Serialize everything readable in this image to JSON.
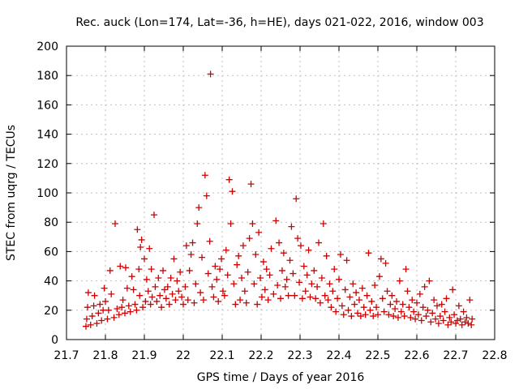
{
  "chart_data": {
    "type": "scatter",
    "title": "Rec. auck (Lon=174, Lat=-36, h=HE), days 021-022, 2016, window 003",
    "xlabel": "GPS time / Days of year 2016",
    "ylabel": "STEC from uqrg / TECUs",
    "xlim": [
      21.7,
      22.8
    ],
    "ylim": [
      0,
      200
    ],
    "xticks": [
      "21.7",
      "21.8",
      "21.9",
      "22",
      "22.1",
      "22.2",
      "22.3",
      "22.4",
      "22.5",
      "22.6",
      "22.7",
      "22.8"
    ],
    "yticks": [
      "0",
      "20",
      "40",
      "60",
      "80",
      "100",
      "120",
      "140",
      "160",
      "180",
      "200"
    ],
    "grid": true,
    "marker": "+",
    "series_color": "#d00000",
    "series": [
      {
        "name": "STEC",
        "points": [
          [
            21.75,
            9
          ],
          [
            21.752,
            14
          ],
          [
            21.754,
            22
          ],
          [
            21.756,
            32
          ],
          [
            21.762,
            10
          ],
          [
            21.766,
            16
          ],
          [
            21.77,
            23
          ],
          [
            21.772,
            30
          ],
          [
            21.778,
            11
          ],
          [
            21.782,
            18
          ],
          [
            21.786,
            24
          ],
          [
            21.79,
            13
          ],
          [
            21.794,
            20
          ],
          [
            21.797,
            35
          ],
          [
            21.8,
            26
          ],
          [
            21.805,
            14
          ],
          [
            21.808,
            20
          ],
          [
            21.812,
            47
          ],
          [
            21.815,
            31
          ],
          [
            21.822,
            15
          ],
          [
            21.825,
            79
          ],
          [
            21.83,
            21
          ],
          [
            21.835,
            17
          ],
          [
            21.838,
            50
          ],
          [
            21.842,
            22
          ],
          [
            21.845,
            27
          ],
          [
            21.85,
            18
          ],
          [
            21.852,
            49
          ],
          [
            21.856,
            35
          ],
          [
            21.86,
            23
          ],
          [
            21.864,
            19
          ],
          [
            21.868,
            43
          ],
          [
            21.872,
            34
          ],
          [
            21.876,
            24
          ],
          [
            21.88,
            20
          ],
          [
            21.882,
            75
          ],
          [
            21.886,
            48
          ],
          [
            21.888,
            30
          ],
          [
            21.89,
            63
          ],
          [
            21.893,
            68
          ],
          [
            21.896,
            22
          ],
          [
            21.9,
            55
          ],
          [
            21.903,
            26
          ],
          [
            21.906,
            41
          ],
          [
            21.91,
            33
          ],
          [
            21.913,
            62
          ],
          [
            21.916,
            24
          ],
          [
            21.918,
            48
          ],
          [
            21.92,
            29
          ],
          [
            21.925,
            85
          ],
          [
            21.928,
            36
          ],
          [
            21.932,
            26
          ],
          [
            21.936,
            42
          ],
          [
            21.94,
            30
          ],
          [
            21.944,
            22
          ],
          [
            21.948,
            47
          ],
          [
            21.952,
            34
          ],
          [
            21.956,
            28
          ],
          [
            21.96,
            36
          ],
          [
            21.964,
            24
          ],
          [
            21.968,
            42
          ],
          [
            21.972,
            31
          ],
          [
            21.976,
            55
          ],
          [
            21.98,
            27
          ],
          [
            21.984,
            40
          ],
          [
            21.988,
            33
          ],
          [
            21.992,
            46
          ],
          [
            21.996,
            29
          ],
          [
            22.0,
            24
          ],
          [
            22.005,
            36
          ],
          [
            22.008,
            64
          ],
          [
            22.012,
            27
          ],
          [
            22.016,
            47
          ],
          [
            22.02,
            58
          ],
          [
            22.024,
            66
          ],
          [
            22.028,
            25
          ],
          [
            22.032,
            38
          ],
          [
            22.036,
            79
          ],
          [
            22.04,
            90
          ],
          [
            22.044,
            32
          ],
          [
            22.048,
            56
          ],
          [
            22.052,
            27
          ],
          [
            22.056,
            112
          ],
          [
            22.06,
            98
          ],
          [
            22.064,
            45
          ],
          [
            22.068,
            67
          ],
          [
            22.07,
            181
          ],
          [
            22.074,
            36
          ],
          [
            22.078,
            29
          ],
          [
            22.082,
            50
          ],
          [
            22.086,
            41
          ],
          [
            22.09,
            26
          ],
          [
            22.094,
            48
          ],
          [
            22.098,
            55
          ],
          [
            22.102,
            33
          ],
          [
            22.106,
            30
          ],
          [
            22.11,
            61
          ],
          [
            22.114,
            44
          ],
          [
            22.118,
            109
          ],
          [
            22.122,
            79
          ],
          [
            22.126,
            101
          ],
          [
            22.13,
            38
          ],
          [
            22.134,
            24
          ],
          [
            22.138,
            51
          ],
          [
            22.142,
            57
          ],
          [
            22.146,
            27
          ],
          [
            22.15,
            42
          ],
          [
            22.154,
            64
          ],
          [
            22.158,
            33
          ],
          [
            22.162,
            25
          ],
          [
            22.166,
            46
          ],
          [
            22.17,
            69
          ],
          [
            22.174,
            106
          ],
          [
            22.178,
            79
          ],
          [
            22.182,
            38
          ],
          [
            22.186,
            58
          ],
          [
            22.19,
            24
          ],
          [
            22.194,
            73
          ],
          [
            22.198,
            42
          ],
          [
            22.202,
            29
          ],
          [
            22.206,
            53
          ],
          [
            22.21,
            34
          ],
          [
            22.214,
            48
          ],
          [
            22.218,
            27
          ],
          [
            22.222,
            44
          ],
          [
            22.226,
            62
          ],
          [
            22.232,
            31
          ],
          [
            22.238,
            81
          ],
          [
            22.242,
            37
          ],
          [
            22.246,
            66
          ],
          [
            22.25,
            28
          ],
          [
            22.254,
            47
          ],
          [
            22.258,
            59
          ],
          [
            22.262,
            36
          ],
          [
            22.266,
            41
          ],
          [
            22.27,
            30
          ],
          [
            22.274,
            54
          ],
          [
            22.278,
            77
          ],
          [
            22.282,
            45
          ],
          [
            22.286,
            30
          ],
          [
            22.29,
            96
          ],
          [
            22.294,
            69
          ],
          [
            22.298,
            39
          ],
          [
            22.302,
            64
          ],
          [
            22.306,
            28
          ],
          [
            22.31,
            50
          ],
          [
            22.314,
            33
          ],
          [
            22.318,
            44
          ],
          [
            22.322,
            61
          ],
          [
            22.326,
            29
          ],
          [
            22.33,
            38
          ],
          [
            22.336,
            47
          ],
          [
            22.34,
            28
          ],
          [
            22.344,
            36
          ],
          [
            22.348,
            66
          ],
          [
            22.352,
            25
          ],
          [
            22.356,
            42
          ],
          [
            22.36,
            79
          ],
          [
            22.364,
            30
          ],
          [
            22.368,
            57
          ],
          [
            22.372,
            27
          ],
          [
            22.376,
            38
          ],
          [
            22.38,
            22
          ],
          [
            22.384,
            33
          ],
          [
            22.388,
            48
          ],
          [
            22.392,
            19
          ],
          [
            22.396,
            28
          ],
          [
            22.4,
            41
          ],
          [
            22.404,
            58
          ],
          [
            22.408,
            23
          ],
          [
            22.412,
            17
          ],
          [
            22.416,
            34
          ],
          [
            22.42,
            54
          ],
          [
            22.424,
            20
          ],
          [
            22.428,
            29
          ],
          [
            22.432,
            16
          ],
          [
            22.436,
            38
          ],
          [
            22.44,
            24
          ],
          [
            22.444,
            32
          ],
          [
            22.448,
            18
          ],
          [
            22.452,
            27
          ],
          [
            22.456,
            16
          ],
          [
            22.46,
            35
          ],
          [
            22.464,
            22
          ],
          [
            22.468,
            17
          ],
          [
            22.472,
            30
          ],
          [
            22.476,
            59
          ],
          [
            22.48,
            20
          ],
          [
            22.484,
            26
          ],
          [
            22.488,
            16
          ],
          [
            22.492,
            37
          ],
          [
            22.496,
            22
          ],
          [
            22.5,
            17
          ],
          [
            22.504,
            43
          ],
          [
            22.508,
            55
          ],
          [
            22.512,
            28
          ],
          [
            22.516,
            19
          ],
          [
            22.52,
            52
          ],
          [
            22.524,
            33
          ],
          [
            22.528,
            17
          ],
          [
            22.532,
            24
          ],
          [
            22.536,
            30
          ],
          [
            22.54,
            16
          ],
          [
            22.544,
            21
          ],
          [
            22.548,
            26
          ],
          [
            22.552,
            15
          ],
          [
            22.556,
            40
          ],
          [
            22.56,
            19
          ],
          [
            22.564,
            24
          ],
          [
            22.568,
            16
          ],
          [
            22.572,
            48
          ],
          [
            22.576,
            33
          ],
          [
            22.58,
            22
          ],
          [
            22.584,
            15
          ],
          [
            22.588,
            27
          ],
          [
            22.592,
            19
          ],
          [
            22.596,
            14
          ],
          [
            22.6,
            25
          ],
          [
            22.604,
            17
          ],
          [
            22.608,
            31
          ],
          [
            22.612,
            13
          ],
          [
            22.616,
            22
          ],
          [
            22.62,
            36
          ],
          [
            22.624,
            16
          ],
          [
            22.628,
            20
          ],
          [
            22.632,
            40
          ],
          [
            22.636,
            12
          ],
          [
            22.64,
            18
          ],
          [
            22.644,
            27
          ],
          [
            22.648,
            14
          ],
          [
            22.652,
            23
          ],
          [
            22.656,
            11
          ],
          [
            22.66,
            16
          ],
          [
            22.664,
            24
          ],
          [
            22.668,
            13
          ],
          [
            22.672,
            19
          ],
          [
            22.676,
            28
          ],
          [
            22.68,
            10
          ],
          [
            22.684,
            15
          ],
          [
            22.688,
            12
          ],
          [
            22.692,
            34
          ],
          [
            22.696,
            17
          ],
          [
            22.7,
            11
          ],
          [
            22.704,
            13
          ],
          [
            22.708,
            23
          ],
          [
            22.712,
            14
          ],
          [
            22.716,
            10
          ],
          [
            22.72,
            19
          ],
          [
            22.724,
            12
          ],
          [
            22.728,
            15
          ],
          [
            22.732,
            11
          ],
          [
            22.736,
            27
          ],
          [
            22.74,
            10
          ],
          [
            22.742,
            14
          ]
        ]
      }
    ]
  }
}
